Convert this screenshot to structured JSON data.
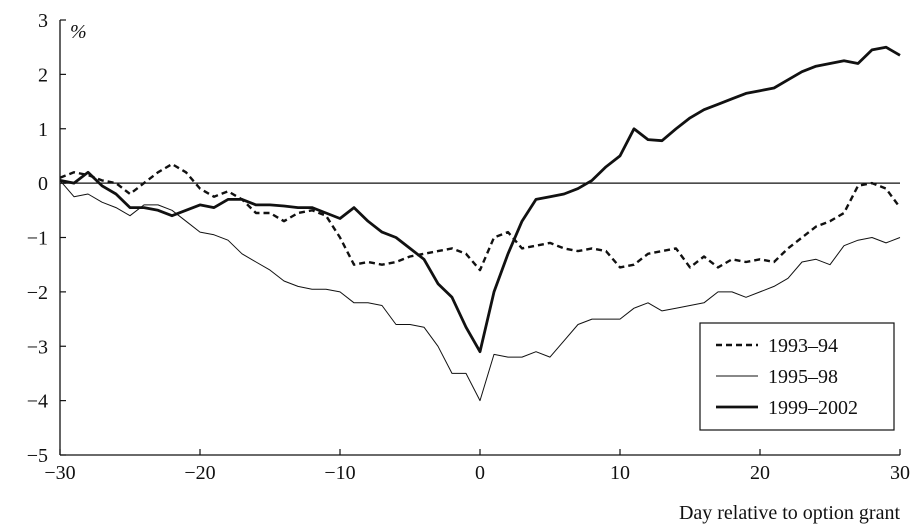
{
  "chart_data": {
    "type": "line",
    "xlabel": "Day relative to option grant",
    "ylabel": "%",
    "xlim": [
      -30,
      30
    ],
    "ylim": [
      -5,
      3
    ],
    "xticks": [
      -30,
      -20,
      -10,
      0,
      10,
      20,
      30
    ],
    "yticks": [
      3,
      2,
      1,
      0,
      -1,
      -2,
      -3,
      -4,
      -5
    ],
    "xtick_labels": [
      "−30",
      "−20",
      "−10",
      "0",
      "10",
      "20",
      "30"
    ],
    "ytick_labels": [
      "3",
      "2",
      "1",
      "0",
      "−1",
      "−2",
      "−3",
      "−4",
      "−5"
    ],
    "zero_line": true,
    "grid": false,
    "legend_position": "bottom-right",
    "x": [
      -30,
      -29,
      -28,
      -27,
      -26,
      -25,
      -24,
      -23,
      -22,
      -21,
      -20,
      -19,
      -18,
      -17,
      -16,
      -15,
      -14,
      -13,
      -12,
      -11,
      -10,
      -9,
      -8,
      -7,
      -6,
      -5,
      -4,
      -3,
      -2,
      -1,
      0,
      1,
      2,
      3,
      4,
      5,
      6,
      7,
      8,
      9,
      10,
      11,
      12,
      13,
      14,
      15,
      16,
      17,
      18,
      19,
      20,
      21,
      22,
      23,
      24,
      25,
      26,
      27,
      28,
      29,
      30
    ],
    "series": [
      {
        "name": "1993–94",
        "style": "dashed",
        "color": "#111111",
        "values": [
          0.1,
          0.2,
          0.15,
          0.05,
          0.0,
          -0.2,
          0.0,
          0.2,
          0.35,
          0.2,
          -0.1,
          -0.25,
          -0.15,
          -0.3,
          -0.55,
          -0.55,
          -0.7,
          -0.55,
          -0.5,
          -0.6,
          -1.0,
          -1.5,
          -1.45,
          -1.5,
          -1.45,
          -1.35,
          -1.3,
          -1.25,
          -1.2,
          -1.3,
          -1.6,
          -1.0,
          -0.9,
          -1.2,
          -1.15,
          -1.1,
          -1.2,
          -1.25,
          -1.2,
          -1.25,
          -1.55,
          -1.5,
          -1.3,
          -1.25,
          -1.2,
          -1.55,
          -1.35,
          -1.55,
          -1.4,
          -1.45,
          -1.4,
          -1.45,
          -1.2,
          -1.0,
          -0.8,
          -0.7,
          -0.55,
          -0.05,
          0.0,
          -0.1,
          -0.45
        ]
      },
      {
        "name": "1995–98",
        "style": "thin",
        "color": "#111111",
        "values": [
          0.05,
          -0.25,
          -0.2,
          -0.35,
          -0.45,
          -0.6,
          -0.4,
          -0.4,
          -0.5,
          -0.7,
          -0.9,
          -0.95,
          -1.05,
          -1.3,
          -1.45,
          -1.6,
          -1.8,
          -1.9,
          -1.95,
          -1.95,
          -2.0,
          -2.2,
          -2.2,
          -2.25,
          -2.6,
          -2.6,
          -2.65,
          -3.0,
          -3.5,
          -3.5,
          -4.0,
          -3.15,
          -3.2,
          -3.2,
          -3.1,
          -3.2,
          -2.9,
          -2.6,
          -2.5,
          -2.5,
          -2.5,
          -2.3,
          -2.2,
          -2.35,
          -2.3,
          -2.25,
          -2.2,
          -2.0,
          -2.0,
          -2.1,
          -2.0,
          -1.9,
          -1.75,
          -1.45,
          -1.4,
          -1.5,
          -1.15,
          -1.05,
          -1.0,
          -1.1,
          -1.0
        ]
      },
      {
        "name": "1999–2002",
        "style": "thick",
        "color": "#111111",
        "values": [
          0.05,
          0.0,
          0.2,
          -0.05,
          -0.2,
          -0.45,
          -0.45,
          -0.5,
          -0.6,
          -0.5,
          -0.4,
          -0.45,
          -0.3,
          -0.3,
          -0.4,
          -0.4,
          -0.42,
          -0.45,
          -0.45,
          -0.55,
          -0.65,
          -0.45,
          -0.7,
          -0.9,
          -1.0,
          -1.2,
          -1.4,
          -1.85,
          -2.1,
          -2.65,
          -3.1,
          -2.0,
          -1.3,
          -0.7,
          -0.3,
          -0.25,
          -0.2,
          -0.1,
          0.05,
          0.3,
          0.5,
          1.0,
          0.8,
          0.78,
          1.0,
          1.2,
          1.35,
          1.45,
          1.55,
          1.65,
          1.7,
          1.75,
          1.9,
          2.05,
          2.15,
          2.2,
          2.25,
          2.2,
          2.45,
          2.5,
          2.35
        ]
      }
    ]
  }
}
